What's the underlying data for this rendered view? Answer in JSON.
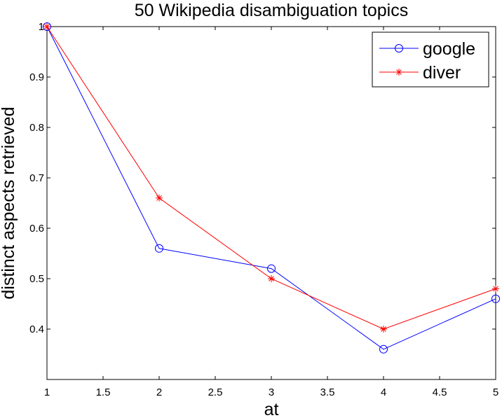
{
  "chart_data": {
    "type": "line",
    "title": "50 Wikipedia disambiguation topics",
    "xlabel": "at",
    "ylabel": "distinct aspects retrieved",
    "xlim": [
      1,
      5
    ],
    "ylim": [
      0.3,
      1.0
    ],
    "x_ticks": [
      1,
      1.5,
      2,
      2.5,
      3,
      3.5,
      4,
      4.5,
      5
    ],
    "x_tick_labels": [
      "1",
      "1.5",
      "2",
      "2.5",
      "3",
      "3.5",
      "4",
      "4.5",
      "5"
    ],
    "y_ticks": [
      0.4,
      0.5,
      0.6,
      0.7,
      0.8,
      0.9,
      1.0
    ],
    "y_tick_labels": [
      "0.4",
      "0.5",
      "0.6",
      "0.7",
      "0.8",
      "0.9",
      "1"
    ],
    "grid": false,
    "legend_position": "top-right",
    "x": [
      1,
      2,
      3,
      4,
      5
    ],
    "series": [
      {
        "name": "google",
        "values": [
          1.0,
          0.56,
          0.52,
          0.36,
          0.46
        ],
        "color": "#0000ff",
        "marker": "circle"
      },
      {
        "name": "diver",
        "values": [
          1.0,
          0.66,
          0.5,
          0.4,
          0.48
        ],
        "color": "#ff0000",
        "marker": "star"
      }
    ]
  }
}
